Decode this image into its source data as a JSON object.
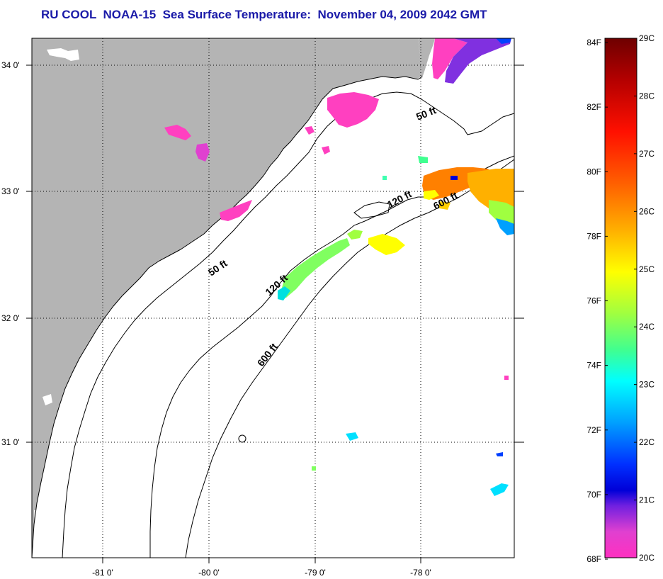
{
  "title": "RU COOL  NOAA-15  Sea Surface Temperature:  November 04, 2009 2042 GMT",
  "map": {
    "lat_labels": [
      "34 0'",
      "33 0'",
      "32 0'",
      "31 0'"
    ],
    "lon_labels": [
      "-81 0'",
      "-80 0'",
      "-79 0'",
      "-78 0'"
    ],
    "contour_labels": {
      "c50_north": "50 ft",
      "c50_south": "50 ft",
      "c120_north": "120 ft",
      "c120_south": "120 ft",
      "c600_north": "600 ft",
      "c600_south": "600 ft"
    },
    "land_color": "#b4b4b4",
    "water_color": "#ffffff"
  },
  "colorbar": {
    "fahrenheit_labels": [
      "84F",
      "82F",
      "80F",
      "78F",
      "76F",
      "74F",
      "72F",
      "70F",
      "68F"
    ],
    "celsius_labels": [
      "29C",
      "28C",
      "27C",
      "26C",
      "25C",
      "24C",
      "23C",
      "22C",
      "21C",
      "20C"
    ],
    "gradient_colors_top_to_bottom": [
      "#6e0000",
      "#c80000",
      "#ff2000",
      "#ff8000",
      "#ffd000",
      "#ffff00",
      "#a0ff40",
      "#40ff80",
      "#00ffff",
      "#00a0ff",
      "#0040ff",
      "#0000e0",
      "#8020e0",
      "#ff40c0"
    ]
  }
}
